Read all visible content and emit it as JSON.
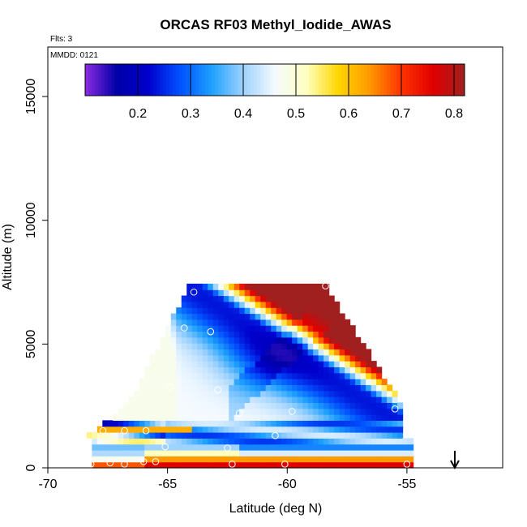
{
  "chart_data": {
    "type": "heatmap",
    "title": "ORCAS RF03 Methyl_Iodide_AWAS",
    "subtitle_flights": "Flts: 3",
    "subtitle_date": "MMDD: 0121",
    "xlabel": "Latitude (deg N)",
    "ylabel": "Altitude (m)",
    "xlim": [
      -70,
      -51
    ],
    "ylim": [
      0,
      17000
    ],
    "x_ticks": [
      -70,
      -65,
      -60,
      -55
    ],
    "y_ticks": [
      0,
      5000,
      10000,
      15000
    ],
    "colorbar": {
      "range": [
        0.1,
        0.82
      ],
      "ticks": [
        0.2,
        0.3,
        0.4,
        0.5,
        0.6,
        0.7,
        0.8
      ],
      "tick_labels": [
        "0.2",
        "0.3",
        "0.4",
        "0.5",
        "0.6",
        "0.7",
        "0.8"
      ],
      "colors": [
        "#8B2BE2",
        "#0000A8",
        "#0000CD",
        "#0050FF",
        "#1EA0FF",
        "#9ED2FF",
        "#F5FAFF",
        "#FFFFC0",
        "#FFD700",
        "#FF9900",
        "#FF3300",
        "#E00000",
        "#A02020"
      ]
    },
    "samples": [
      {
        "lat": -68.2,
        "alt": 150
      },
      {
        "lat": -67.4,
        "alt": 200
      },
      {
        "lat": -66.8,
        "alt": 150
      },
      {
        "lat": -66.0,
        "alt": 250
      },
      {
        "lat": -65.5,
        "alt": 250
      },
      {
        "lat": -62.3,
        "alt": 150
      },
      {
        "lat": -60.1,
        "alt": 150
      },
      {
        "lat": -55.0,
        "alt": 150
      },
      {
        "lat": -67.7,
        "alt": 1500
      },
      {
        "lat": -66.8,
        "alt": 1500
      },
      {
        "lat": -65.9,
        "alt": 1500
      },
      {
        "lat": -65.1,
        "alt": 850
      },
      {
        "lat": -62.5,
        "alt": 800
      },
      {
        "lat": -64.9,
        "alt": 3250
      },
      {
        "lat": -62.9,
        "alt": 3150
      },
      {
        "lat": -59.8,
        "alt": 2280
      },
      {
        "lat": -55.5,
        "alt": 2380
      },
      {
        "lat": -64.3,
        "alt": 5650
      },
      {
        "lat": -63.2,
        "alt": 5500
      },
      {
        "lat": -63.9,
        "alt": 7100
      },
      {
        "lat": -58.4,
        "alt": 7350
      },
      {
        "lat": -62.0,
        "alt": 2200
      },
      {
        "lat": -60.5,
        "alt": 1300
      }
    ],
    "arrow": {
      "lat": -53.0
    }
  }
}
